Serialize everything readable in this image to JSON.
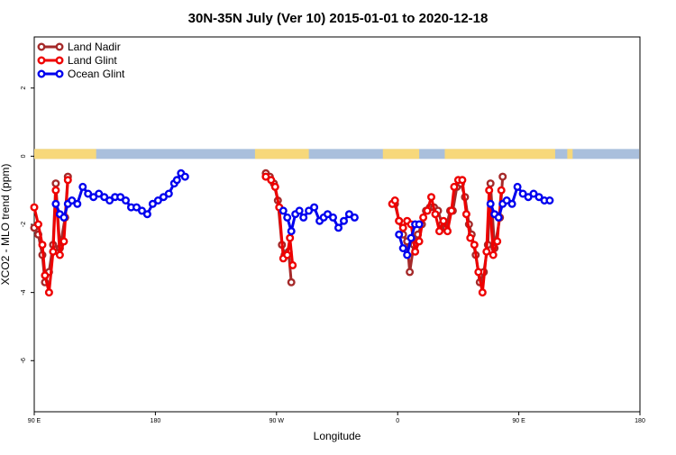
{
  "chart_data": {
    "type": "line",
    "title": "30N-35N July (Ver 10)   2015-01-01 to 2020-12-18",
    "xlabel": "Longitude",
    "ylabel": "XCO2 - MLO trend (ppm)",
    "xlim": [
      90,
      540
    ],
    "ylim": [
      -7.5,
      3.5
    ],
    "x_ticks": [
      {
        "value": 90,
        "label": "90 E"
      },
      {
        "value": 180,
        "label": "180"
      },
      {
        "value": 270,
        "label": "90 W"
      },
      {
        "value": 360,
        "label": "0"
      },
      {
        "value": 450,
        "label": "90 E"
      },
      {
        "value": 540,
        "label": "180"
      }
    ],
    "y_ticks": [
      {
        "value": 2,
        "label": "2"
      },
      {
        "value": 0,
        "label": "0"
      },
      {
        "value": -2,
        "label": "-2"
      },
      {
        "value": -4,
        "label": "-4"
      },
      {
        "value": -6,
        "label": "-6"
      }
    ],
    "legend": {
      "placement": "top-left"
    },
    "landmask": {
      "y": 0,
      "land_color": "#f7d87a",
      "ocean_color": "#a9bfdc",
      "land_ranges": [
        [
          90,
          136
        ],
        [
          254,
          294
        ],
        [
          349,
          376
        ],
        [
          395,
          477
        ],
        [
          486,
          490
        ]
      ]
    },
    "series": [
      {
        "name": "Land Nadir",
        "color": "#a52a2a",
        "segments": [
          [
            [
              90,
              -2.1
            ],
            [
              93,
              -2.3
            ],
            [
              96,
              -2.9
            ],
            [
              98,
              -3.7
            ],
            [
              101,
              -3.4
            ],
            [
              104,
              -2.6
            ],
            [
              106,
              -0.8
            ],
            [
              109,
              -2.7
            ],
            [
              113,
              -1.8
            ],
            [
              115,
              -0.6
            ]
          ],
          [
            [
              262,
              -0.5
            ],
            [
              265,
              -0.6
            ],
            [
              268,
              -0.8
            ],
            [
              271,
              -1.3
            ],
            [
              274,
              -2.6
            ],
            [
              276,
              -2.9
            ],
            [
              279,
              -2.8
            ],
            [
              281,
              -3.7
            ]
          ],
          [
            [
              356,
              -1.4
            ],
            [
              358,
              -1.4
            ],
            [
              361,
              -1.9
            ],
            [
              364,
              -2.3
            ],
            [
              367,
              -2.5
            ],
            [
              369,
              -3.4
            ],
            [
              372,
              -2.6
            ],
            [
              375,
              -2.3
            ],
            [
              378,
              -2
            ],
            [
              381,
              -1.6
            ],
            [
              384,
              -1.5
            ],
            [
              387,
              -1.5
            ],
            [
              390,
              -1.6
            ],
            [
              393,
              -2
            ],
            [
              396,
              -2.1
            ],
            [
              399,
              -1.6
            ],
            [
              401,
              -1.6
            ],
            [
              404,
              -0.9
            ],
            [
              407,
              -0.8
            ],
            [
              410,
              -1.2
            ],
            [
              413,
              -2
            ],
            [
              415,
              -2.3
            ],
            [
              418,
              -2.9
            ],
            [
              421,
              -3.7
            ],
            [
              424,
              -3.4
            ],
            [
              427,
              -2.6
            ],
            [
              429,
              -0.8
            ],
            [
              432,
              -2.7
            ],
            [
              436,
              -1.8
            ],
            [
              438,
              -0.6
            ]
          ]
        ]
      },
      {
        "name": "Land Glint",
        "color": "#ee0000",
        "segments": [
          [
            [
              90,
              -1.5
            ],
            [
              93,
              -2
            ],
            [
              96,
              -2.6
            ],
            [
              98,
              -3.5
            ],
            [
              101,
              -4
            ],
            [
              104,
              -2.8
            ],
            [
              106,
              -1
            ],
            [
              109,
              -2.9
            ],
            [
              112,
              -2.5
            ],
            [
              115,
              -0.7
            ]
          ],
          [
            [
              262,
              -0.6
            ],
            [
              266,
              -0.7
            ],
            [
              269,
              -0.9
            ],
            [
              272,
              -1.5
            ],
            [
              275,
              -3
            ],
            [
              278,
              -2.9
            ],
            [
              280,
              -2.4
            ],
            [
              282,
              -3.2
            ]
          ],
          [
            [
              356,
              -1.4
            ],
            [
              358,
              -1.3
            ],
            [
              361,
              -1.9
            ],
            [
              364,
              -2.1
            ],
            [
              367,
              -1.9
            ],
            [
              370,
              -2
            ],
            [
              373,
              -2.8
            ],
            [
              376,
              -2.5
            ],
            [
              379,
              -1.8
            ],
            [
              382,
              -1.6
            ],
            [
              385,
              -1.2
            ],
            [
              388,
              -1.7
            ],
            [
              391,
              -2.2
            ],
            [
              394,
              -1.9
            ],
            [
              397,
              -2.2
            ],
            [
              400,
              -1.6
            ],
            [
              402,
              -0.9
            ],
            [
              405,
              -0.7
            ],
            [
              408,
              -0.7
            ],
            [
              411,
              -1.7
            ],
            [
              414,
              -2.4
            ],
            [
              417,
              -2.6
            ],
            [
              420,
              -3.4
            ],
            [
              423,
              -4
            ],
            [
              426,
              -2.8
            ],
            [
              428,
              -1
            ],
            [
              431,
              -2.9
            ],
            [
              434,
              -2.5
            ],
            [
              437,
              -1
            ]
          ]
        ]
      },
      {
        "name": "Ocean Glint",
        "color": "#0000ee",
        "segments": [
          [
            [
              106,
              -1.4
            ],
            [
              109,
              -1.7
            ],
            [
              112,
              -1.8
            ],
            [
              115,
              -1.4
            ],
            [
              118,
              -1.3
            ],
            [
              122,
              -1.4
            ],
            [
              126,
              -0.9
            ],
            [
              130,
              -1.1
            ],
            [
              134,
              -1.2
            ],
            [
              138,
              -1.1
            ],
            [
              142,
              -1.2
            ],
            [
              146,
              -1.3
            ],
            [
              150,
              -1.2
            ],
            [
              154,
              -1.2
            ],
            [
              158,
              -1.3
            ],
            [
              162,
              -1.5
            ],
            [
              166,
              -1.5
            ],
            [
              170,
              -1.6
            ],
            [
              174,
              -1.7
            ],
            [
              178,
              -1.4
            ],
            [
              182,
              -1.3
            ],
            [
              186,
              -1.2
            ],
            [
              190,
              -1.1
            ],
            [
              194,
              -0.8
            ],
            [
              196,
              -0.7
            ],
            [
              199,
              -0.5
            ],
            [
              202,
              -0.6
            ]
          ],
          [
            [
              275,
              -1.6
            ],
            [
              278,
              -1.8
            ],
            [
              281,
              -2.2
            ],
            [
              284,
              -1.7
            ],
            [
              287,
              -1.6
            ],
            [
              290,
              -1.8
            ],
            [
              294,
              -1.6
            ],
            [
              298,
              -1.5
            ],
            [
              302,
              -1.9
            ],
            [
              305,
              -1.8
            ],
            [
              308,
              -1.7
            ],
            [
              312,
              -1.8
            ],
            [
              316,
              -2.1
            ],
            [
              320,
              -1.9
            ],
            [
              324,
              -1.7
            ],
            [
              328,
              -1.8
            ]
          ],
          [
            [
              361,
              -2.3
            ],
            [
              364,
              -2.7
            ],
            [
              367,
              -2.9
            ],
            [
              370,
              -2.4
            ],
            [
              373,
              -2
            ],
            [
              376,
              -2
            ]
          ],
          [
            [
              429,
              -1.4
            ],
            [
              432,
              -1.7
            ],
            [
              435,
              -1.8
            ],
            [
              438,
              -1.4
            ],
            [
              441,
              -1.3
            ],
            [
              445,
              -1.4
            ],
            [
              449,
              -0.9
            ],
            [
              453,
              -1.1
            ],
            [
              457,
              -1.2
            ],
            [
              461,
              -1.1
            ],
            [
              465,
              -1.2
            ],
            [
              469,
              -1.3
            ],
            [
              473,
              -1.3
            ]
          ]
        ]
      }
    ]
  }
}
